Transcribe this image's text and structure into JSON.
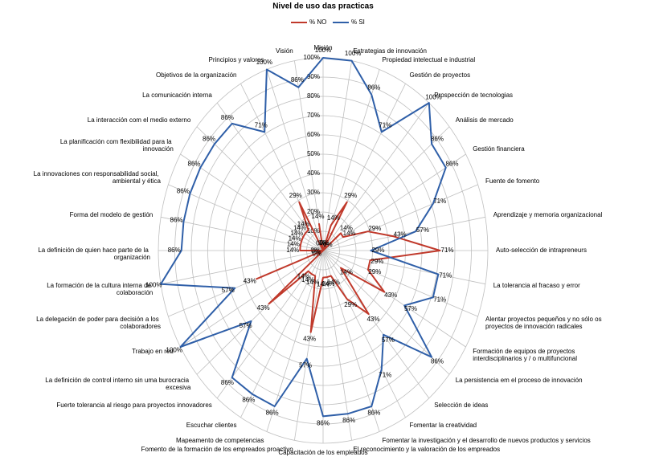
{
  "chart_data": {
    "type": "radar",
    "title": "Nivel de uso das practicas",
    "categories": [
      "Misión",
      "Estrategias de innovación",
      "Propiedad intelectual e industrial",
      "Gestión de proyectos",
      "Prospección de tecnologias",
      "Análisis de mercado",
      "Gestión financiera",
      "Fuente de fomento",
      "Aprendizaje y memoria organizacional",
      "Auto-selección de intrapreneurs",
      "La tolerancia al fracaso y error",
      "Alentar proyectos pequeños y no sólo os proyectos de innovación radicales",
      "Formación de equipos de proyectos interdisciplinarios y / o multifuncional",
      "La persistencia em el proceso de innovación",
      "Selección de ideas",
      "Fomentar la creatividad",
      "Fomentar la investigación y el desarrollo de nuevos productos y servicios",
      "El reconocimiento y la valoración de los empreados",
      "Capacitación de los empleados",
      "Fomento de la formación de los empreados proactivo",
      "Mapeamento de competencias",
      "Escuchar clientes",
      "Fuerte tolerancia al riesgo para proyectos innovadores",
      "La definición de control interno sin uma burocracia excesiva",
      "Trabajo en red",
      "La delegación de poder para decisión a los colaboradores",
      "La formación de la cultura interna de colaboración",
      "La definición de quien hace parte de la organización",
      "Forma del modelo de gestión",
      "La innovaciones con responsabilidad social, ambiental y ética",
      "La planificación com flexibilidad para la innovación",
      "La interacción com el medio externo",
      "La comunicación interna",
      "Objetivos de la organización",
      "Principios y valores",
      "Visión"
    ],
    "series": [
      {
        "name": "% NO",
        "color": "#c0392b",
        "values": [
          0,
          0,
          14,
          29,
          0,
          14,
          14,
          29,
          43,
          71,
          29,
          29,
          43,
          14,
          43,
          29,
          14,
          14,
          14,
          43,
          14,
          14,
          14,
          43,
          0,
          43,
          0,
          14,
          14,
          14,
          14,
          14,
          14,
          29,
          0,
          14
        ],
        "value_labels": [
          "0%",
          "0%",
          "14%",
          "29%",
          "0%",
          "14%",
          "14%",
          "29%",
          "43%",
          "71%",
          "29%",
          "29%",
          "43%",
          "14%",
          "43%",
          "29%",
          "14%",
          "14%",
          "14%",
          "43%",
          "14%",
          "14%",
          "14%",
          "43%",
          "0%",
          "43%",
          "0%",
          "14%",
          "14%",
          "14%",
          "14%",
          "14%",
          "14%",
          "29%",
          "0%",
          "14%"
        ]
      },
      {
        "name": "% SI",
        "color": "#2f5fa8",
        "values": [
          100,
          100,
          86,
          71,
          100,
          86,
          86,
          71,
          57,
          29,
          71,
          71,
          57,
          86,
          57,
          71,
          86,
          86,
          86,
          57,
          86,
          86,
          86,
          57,
          100,
          57,
          100,
          86,
          86,
          86,
          86,
          86,
          86,
          71,
          100,
          86
        ],
        "value_labels": [
          "100%",
          "100%",
          "86%",
          "71%",
          "100%",
          "86%",
          "86%",
          "71%",
          "57%",
          "29%",
          "71%",
          "71%",
          "57%",
          "86%",
          "57%",
          "71%",
          "86%",
          "86%",
          "86%",
          "57%",
          "86%",
          "86%",
          "86%",
          "57%",
          "100%",
          "57%",
          "100%",
          "86%",
          "86%",
          "86%",
          "86%",
          "86%",
          "86%",
          "71%",
          "100%",
          "86%"
        ]
      }
    ],
    "ylim": [
      0,
      100
    ],
    "yticks": [
      {
        "value": 0,
        "label": "0%"
      },
      {
        "value": 10,
        "label": "10%"
      },
      {
        "value": 20,
        "label": "20%"
      },
      {
        "value": 30,
        "label": "30%"
      },
      {
        "value": 40,
        "label": "40%"
      },
      {
        "value": 50,
        "label": "50%"
      },
      {
        "value": 60,
        "label": "60%"
      },
      {
        "value": 70,
        "label": "70%"
      },
      {
        "value": 80,
        "label": "80%"
      },
      {
        "value": 90,
        "label": "90%"
      },
      {
        "value": 100,
        "label": "100%"
      }
    ],
    "grid": true,
    "legend": "top"
  }
}
